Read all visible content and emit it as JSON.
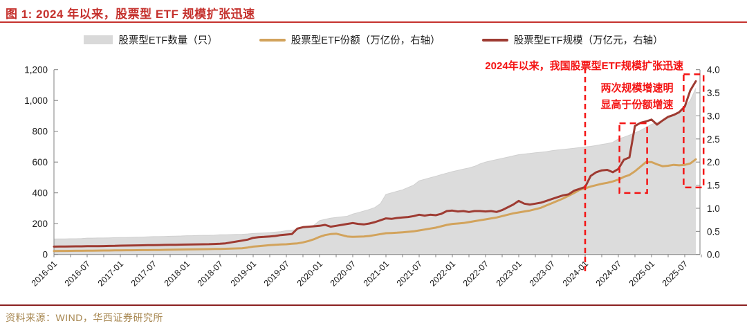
{
  "header": {
    "title": "图 1:  2024 年以来，股票型 ETF 规模扩张迅速"
  },
  "colors": {
    "title_red": "#c5312d",
    "rule_red": "#c5312d",
    "annotation_red": "#f41414",
    "area_gray": "#dcdcdc",
    "area_edge": "#d0d0d0",
    "shares_tan": "#d2a35c",
    "scale_dark_red": "#9e3b32",
    "axis_gray": "#7f7f7f",
    "axis_text": "#1a1a1a",
    "footer_rule": "#8b2020",
    "footer_text": "#a6854e"
  },
  "legend": [
    {
      "label": "股票型ETF数量（只）",
      "marker": "area",
      "color": "#d9d9d9"
    },
    {
      "label": "股票型ETF份额（万亿份，右轴）",
      "marker": "line",
      "color": "#d2a35c"
    },
    {
      "label": "股票型ETF规模（万亿元，右轴）",
      "marker": "line",
      "color": "#9e3b32"
    }
  ],
  "annotations": {
    "top_right": "2024年以来，我国股票型ETF规模扩张迅速",
    "box_label_line1": "两次规模增速明",
    "box_label_line2": "显高于份额增速"
  },
  "footer": {
    "source": "资料来源：WIND，华西证券研究所"
  },
  "chart_data": {
    "type": "area+line",
    "x_start": "2016-01",
    "x_monthly": true,
    "x_tick_labels": [
      "2016-01",
      "2016-07",
      "2017-01",
      "2017-07",
      "2018-01",
      "2018-07",
      "2019-01",
      "2019-07",
      "2020-01",
      "2020-07",
      "2021-01",
      "2021-07",
      "2022-01",
      "2022-07",
      "2023-01",
      "2023-07",
      "2024-01",
      "2024-07",
      "2025-01",
      "2025-07"
    ],
    "left_axis": {
      "min": 0,
      "max": 1200,
      "ticks": [
        0,
        200,
        400,
        600,
        800,
        1000,
        1200
      ],
      "tick_labels": [
        "0",
        "200",
        "400",
        "600",
        "800",
        "1,000",
        "1,200"
      ]
    },
    "right_axis": {
      "min": 0,
      "max": 4,
      "ticks": [
        0,
        0.5,
        1,
        1.5,
        2,
        2.5,
        3,
        3.5,
        4
      ],
      "tick_labels": [
        "0.0",
        "0.5",
        "1.0",
        "1.5",
        "2.0",
        "2.5",
        "3.0",
        "3.5",
        "4.0"
      ]
    },
    "series": [
      {
        "name": "股票型ETF数量（只）",
        "type": "area",
        "axis": "left",
        "color": "#dcdcdc",
        "values": [
          100,
          101,
          101,
          102,
          102,
          103,
          106,
          106,
          107,
          107,
          108,
          109,
          110,
          110,
          111,
          112,
          113,
          114,
          116,
          116,
          117,
          118,
          119,
          120,
          122,
          122,
          123,
          124,
          124,
          125,
          128,
          128,
          129,
          130,
          131,
          133,
          136,
          138,
          140,
          142,
          145,
          148,
          155,
          158,
          162,
          168,
          175,
          190,
          220,
          228,
          236,
          240,
          244,
          248,
          262,
          272,
          282,
          292,
          305,
          330,
          390,
          400,
          410,
          420,
          435,
          450,
          478,
          488,
          498,
          508,
          518,
          528,
          538,
          546,
          554,
          562,
          572,
          588,
          600,
          608,
          616,
          624,
          632,
          640,
          648,
          652,
          656,
          660,
          664,
          668,
          674,
          678,
          682,
          686,
          690,
          694,
          698,
          702,
          708,
          714,
          720,
          728,
          750,
          762,
          775,
          790,
          805,
          825,
          845,
          858,
          870,
          885,
          900,
          920,
          955,
          1000,
          1080
        ]
      },
      {
        "name": "股票型ETF份额（万亿份，右轴）",
        "type": "line",
        "axis": "right",
        "color": "#d2a35c",
        "values": [
          0.075,
          0.076,
          0.077,
          0.078,
          0.079,
          0.08,
          0.082,
          0.083,
          0.084,
          0.085,
          0.086,
          0.088,
          0.09,
          0.091,
          0.092,
          0.093,
          0.094,
          0.095,
          0.097,
          0.098,
          0.1,
          0.102,
          0.104,
          0.106,
          0.108,
          0.11,
          0.112,
          0.114,
          0.116,
          0.118,
          0.12,
          0.123,
          0.126,
          0.13,
          0.135,
          0.15,
          0.17,
          0.18,
          0.19,
          0.2,
          0.21,
          0.215,
          0.22,
          0.23,
          0.24,
          0.26,
          0.29,
          0.33,
          0.38,
          0.42,
          0.44,
          0.45,
          0.42,
          0.39,
          0.38,
          0.385,
          0.39,
          0.4,
          0.42,
          0.44,
          0.46,
          0.465,
          0.47,
          0.48,
          0.49,
          0.5,
          0.52,
          0.54,
          0.56,
          0.58,
          0.61,
          0.64,
          0.66,
          0.67,
          0.68,
          0.7,
          0.72,
          0.74,
          0.76,
          0.78,
          0.8,
          0.83,
          0.86,
          0.89,
          0.91,
          0.93,
          0.95,
          0.98,
          1.01,
          1.06,
          1.11,
          1.16,
          1.21,
          1.27,
          1.33,
          1.4,
          1.43,
          1.47,
          1.5,
          1.53,
          1.55,
          1.58,
          1.62,
          1.68,
          1.72,
          1.8,
          1.9,
          2.0,
          2.0,
          1.95,
          1.91,
          1.92,
          1.94,
          1.93,
          1.94,
          1.97,
          2.06
        ]
      },
      {
        "name": "股票型ETF规模（万亿元，右轴）",
        "type": "line",
        "axis": "right",
        "color": "#9e3b32",
        "values": [
          0.17,
          0.172,
          0.172,
          0.174,
          0.175,
          0.176,
          0.178,
          0.18,
          0.18,
          0.182,
          0.184,
          0.186,
          0.19,
          0.192,
          0.194,
          0.196,
          0.198,
          0.2,
          0.202,
          0.204,
          0.206,
          0.208,
          0.21,
          0.212,
          0.214,
          0.216,
          0.218,
          0.22,
          0.222,
          0.226,
          0.23,
          0.24,
          0.26,
          0.28,
          0.3,
          0.32,
          0.36,
          0.375,
          0.38,
          0.39,
          0.4,
          0.42,
          0.43,
          0.44,
          0.56,
          0.59,
          0.6,
          0.61,
          0.62,
          0.64,
          0.6,
          0.62,
          0.64,
          0.66,
          0.68,
          0.66,
          0.65,
          0.67,
          0.7,
          0.74,
          0.78,
          0.77,
          0.79,
          0.8,
          0.81,
          0.83,
          0.86,
          0.84,
          0.86,
          0.85,
          0.88,
          0.94,
          0.95,
          0.93,
          0.94,
          0.92,
          0.94,
          0.94,
          0.93,
          0.94,
          0.92,
          0.96,
          1.02,
          1.08,
          1.16,
          1.1,
          1.08,
          1.1,
          1.12,
          1.16,
          1.2,
          1.24,
          1.28,
          1.3,
          1.38,
          1.42,
          1.46,
          1.7,
          1.78,
          1.82,
          1.83,
          1.78,
          1.85,
          2.05,
          2.1,
          2.78,
          2.85,
          2.88,
          2.92,
          2.81,
          2.9,
          2.98,
          3.02,
          3.08,
          3.2,
          3.55,
          3.75
        ]
      }
    ],
    "overlays": {
      "dashed_vline_month": "2024-01",
      "dashed_vline_month_index": 96,
      "highlight_boxes": [
        {
          "start_month_index": 102.2,
          "end_month_index": 107.2,
          "y_min_right": 1.33,
          "y_max_right": 2.84
        },
        {
          "start_month_index": 113.8,
          "end_month_index": 117.4,
          "y_min_right": 1.45,
          "y_max_right": 3.9
        }
      ]
    },
    "legend_position": "top",
    "grid": false
  }
}
